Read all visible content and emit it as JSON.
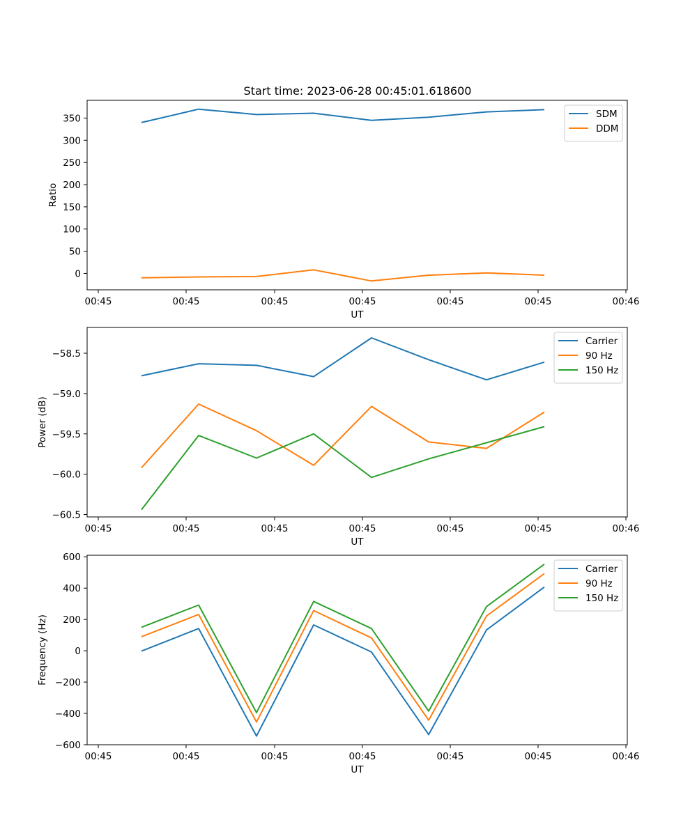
{
  "title": "Start time: 2023-06-28 00:45:01.618600",
  "chart_data": [
    {
      "type": "line",
      "xlabel": "UT",
      "ylabel": "Ratio",
      "x_tick_labels": [
        "00:45",
        "00:45",
        "00:45",
        "00:45",
        "00:45",
        "00:45",
        "00:46"
      ],
      "ylim": [
        -37,
        390
      ],
      "y_ticks": [
        0,
        50,
        100,
        150,
        200,
        250,
        300,
        350
      ],
      "legend_position": "upper right",
      "series": [
        {
          "name": "SDM",
          "color": "#1f77b4",
          "values": [
            340,
            370,
            358,
            361,
            345,
            352,
            364,
            369
          ]
        },
        {
          "name": "DDM",
          "color": "#ff7f0e",
          "values": [
            -10,
            -8,
            -7,
            8,
            -17,
            -4,
            1,
            -4
          ]
        }
      ]
    },
    {
      "type": "line",
      "xlabel": "UT",
      "ylabel": "Power (dB)",
      "x_tick_labels": [
        "00:45",
        "00:45",
        "00:45",
        "00:45",
        "00:45",
        "00:45",
        "00:46"
      ],
      "ylim": [
        -60.53,
        -58.18
      ],
      "y_ticks": [
        -60.5,
        -60.0,
        -59.5,
        -59.0,
        -58.5
      ],
      "y_tick_labels": [
        "−60.5",
        "−60.0",
        "−59.5",
        "−59.0",
        "−58.5"
      ],
      "legend_position": "upper right",
      "series": [
        {
          "name": "Carrier",
          "color": "#1f77b4",
          "values": [
            -58.78,
            -58.63,
            -58.65,
            -58.79,
            -58.31,
            -58.58,
            -58.83,
            -58.61
          ]
        },
        {
          "name": "90 Hz",
          "color": "#ff7f0e",
          "values": [
            -59.92,
            -59.13,
            -59.46,
            -59.89,
            -59.16,
            -59.6,
            -59.68,
            -59.23
          ]
        },
        {
          "name": "150 Hz",
          "color": "#2ca02c",
          "values": [
            -60.44,
            -59.52,
            -59.8,
            -59.5,
            -60.04,
            -59.81,
            -59.61,
            -59.41
          ]
        }
      ]
    },
    {
      "type": "line",
      "xlabel": "UT",
      "ylabel": "Frequency (Hz)",
      "x_tick_labels": [
        "00:45",
        "00:45",
        "00:45",
        "00:45",
        "00:45",
        "00:45",
        "00:46"
      ],
      "ylim": [
        -600,
        610
      ],
      "y_ticks": [
        -600,
        -400,
        -200,
        0,
        200,
        400,
        600
      ],
      "y_tick_labels": [
        "−600",
        "−400",
        "−200",
        "0",
        "200",
        "400",
        "600"
      ],
      "legend_position": "upper right",
      "series": [
        {
          "name": "Carrier",
          "color": "#1f77b4",
          "values": [
            -2,
            142,
            -545,
            165,
            -8,
            -535,
            133,
            407
          ]
        },
        {
          "name": "90 Hz",
          "color": "#ff7f0e",
          "values": [
            90,
            232,
            -455,
            257,
            82,
            -443,
            222,
            493
          ]
        },
        {
          "name": "150 Hz",
          "color": "#2ca02c",
          "values": [
            150,
            292,
            -395,
            315,
            142,
            -385,
            282,
            553
          ]
        }
      ]
    }
  ]
}
